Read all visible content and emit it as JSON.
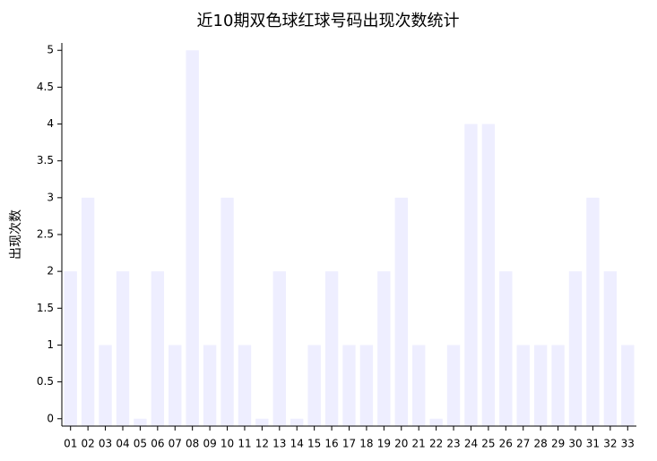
{
  "chart_data": {
    "type": "bar",
    "title": "近10期双色球红球号码出现次数统计",
    "y_label": "出现次数",
    "categories": [
      "01",
      "02",
      "03",
      "04",
      "05",
      "06",
      "07",
      "08",
      "09",
      "10",
      "11",
      "12",
      "13",
      "14",
      "15",
      "16",
      "17",
      "18",
      "19",
      "20",
      "21",
      "22",
      "23",
      "24",
      "25",
      "26",
      "27",
      "28",
      "29",
      "30",
      "31",
      "32",
      "33"
    ],
    "values": [
      2,
      3,
      1,
      2,
      0,
      2,
      1,
      5,
      1,
      3,
      1,
      0,
      2,
      0,
      1,
      2,
      1,
      1,
      2,
      3,
      1,
      0,
      1,
      4,
      4,
      2,
      1,
      1,
      1,
      2,
      3,
      2,
      1
    ],
    "color": "#eeeeff",
    "ylim": [
      -0.1,
      5.1
    ],
    "yticks": [
      0,
      0.5,
      1,
      1.5,
      2,
      2.5,
      3,
      3.5,
      4,
      4.5,
      5
    ],
    "grid": false
  }
}
